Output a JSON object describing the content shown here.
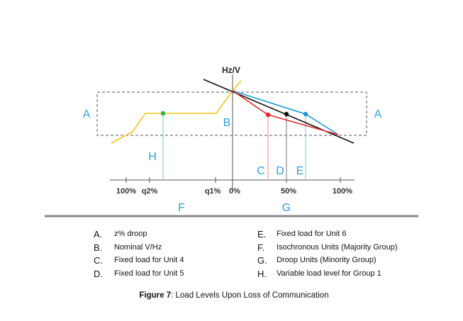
{
  "diagram": {
    "axis_label": "Hz/V",
    "tick_labels": [
      "100%",
      "q2%",
      "q1%",
      "0%",
      "50%",
      "100%"
    ],
    "markers": [
      "A",
      "A",
      "B",
      "C",
      "D",
      "E",
      "F",
      "G",
      "H"
    ]
  },
  "legend": [
    {
      "letter": "A.",
      "text": "z% droop"
    },
    {
      "letter": "B.",
      "text": "Nominal V/Hz"
    },
    {
      "letter": "C.",
      "text": "Fixed load for Unit 4"
    },
    {
      "letter": "D.",
      "text": "Fixed load for Unit 5"
    },
    {
      "letter": "E.",
      "text": "Fixed load for Unit 6"
    },
    {
      "letter": "F.",
      "text": "Isochronous Units (Majority Group)"
    },
    {
      "letter": "G.",
      "text": "Droop Units (Minority Group)"
    },
    {
      "letter": "H.",
      "text": "Variable load level for Group 1"
    }
  ],
  "caption": {
    "label": "Figure 7",
    "text": ": Load Levels Upon Loss of Communication"
  }
}
